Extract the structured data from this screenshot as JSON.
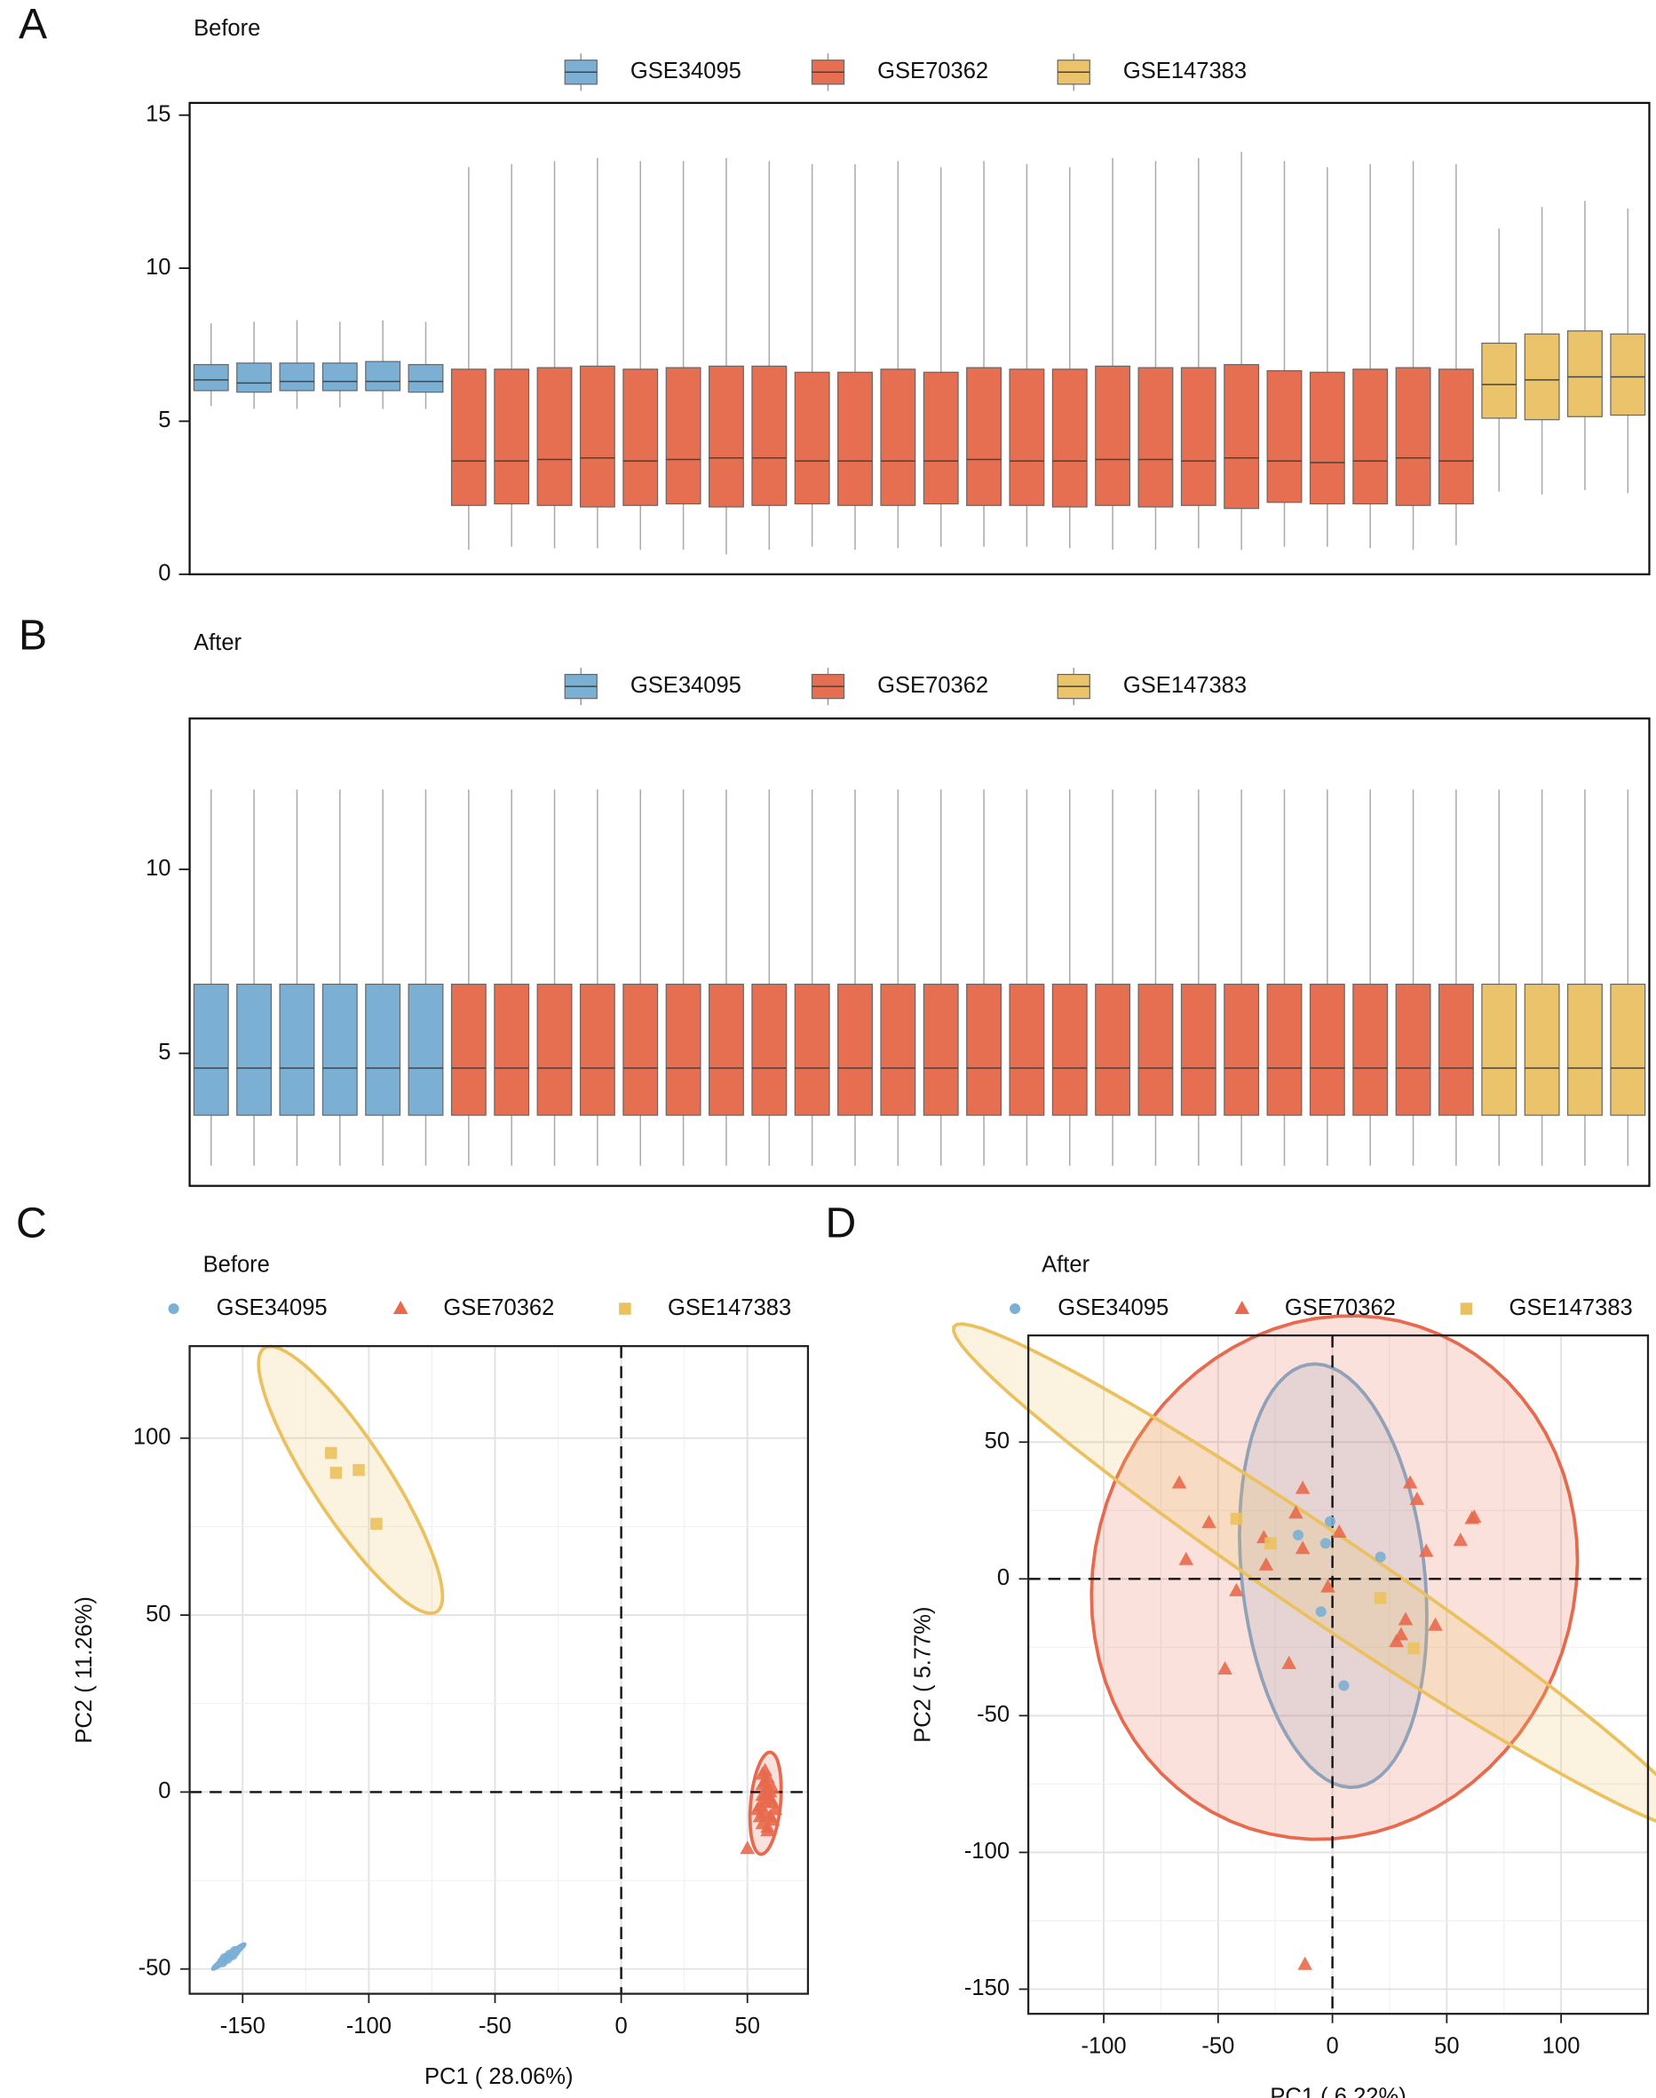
{
  "chart_data": [
    {
      "type": "box",
      "panel": "A",
      "title": "Before",
      "ylim": [
        0,
        15.4
      ],
      "yticks": [
        0,
        5,
        10,
        15
      ],
      "series": [
        {
          "name": "GSE34095",
          "color": "#7BAFD4",
          "boxes": [
            [
              5.5,
              6.0,
              6.35,
              6.85,
              8.2
            ],
            [
              5.4,
              5.95,
              6.25,
              6.9,
              8.25
            ],
            [
              5.4,
              6.0,
              6.3,
              6.9,
              8.3
            ],
            [
              5.45,
              6.0,
              6.3,
              6.9,
              8.25
            ],
            [
              5.4,
              6.0,
              6.3,
              6.95,
              8.3
            ],
            [
              5.4,
              5.95,
              6.3,
              6.85,
              8.25
            ]
          ]
        },
        {
          "name": "GSE70362",
          "color": "#E66F51",
          "boxes": [
            [
              0.8,
              2.25,
              3.7,
              6.7,
              13.3
            ],
            [
              0.9,
              2.3,
              3.7,
              6.7,
              13.4
            ],
            [
              0.85,
              2.25,
              3.75,
              6.75,
              13.5
            ],
            [
              0.85,
              2.2,
              3.8,
              6.8,
              13.6
            ],
            [
              0.8,
              2.25,
              3.7,
              6.7,
              13.5
            ],
            [
              0.8,
              2.3,
              3.75,
              6.75,
              13.5
            ],
            [
              0.65,
              2.2,
              3.8,
              6.8,
              13.6
            ],
            [
              0.8,
              2.25,
              3.8,
              6.8,
              13.5
            ],
            [
              0.9,
              2.3,
              3.7,
              6.6,
              13.4
            ],
            [
              0.8,
              2.25,
              3.7,
              6.6,
              13.4
            ],
            [
              0.85,
              2.25,
              3.7,
              6.7,
              13.5
            ],
            [
              0.9,
              2.3,
              3.7,
              6.6,
              13.3
            ],
            [
              0.9,
              2.25,
              3.75,
              6.75,
              13.5
            ],
            [
              0.9,
              2.25,
              3.7,
              6.7,
              13.4
            ],
            [
              0.85,
              2.2,
              3.7,
              6.7,
              13.3
            ],
            [
              0.8,
              2.25,
              3.75,
              6.8,
              13.6
            ],
            [
              0.8,
              2.2,
              3.75,
              6.75,
              13.5
            ],
            [
              0.85,
              2.25,
              3.7,
              6.75,
              13.6
            ],
            [
              0.8,
              2.15,
              3.8,
              6.85,
              13.8
            ],
            [
              0.9,
              2.35,
              3.7,
              6.65,
              13.5
            ],
            [
              0.9,
              2.3,
              3.65,
              6.6,
              13.3
            ],
            [
              0.85,
              2.3,
              3.7,
              6.7,
              13.4
            ],
            [
              0.8,
              2.25,
              3.8,
              6.75,
              13.5
            ],
            [
              0.95,
              2.3,
              3.7,
              6.7,
              13.4
            ]
          ]
        },
        {
          "name": "GSE147383",
          "color": "#EBC36A",
          "boxes": [
            [
              2.7,
              5.1,
              6.2,
              7.55,
              11.3
            ],
            [
              2.6,
              5.05,
              6.35,
              7.85,
              12.0
            ],
            [
              2.75,
              5.15,
              6.45,
              7.95,
              12.2
            ],
            [
              2.65,
              5.2,
              6.45,
              7.85,
              11.95
            ]
          ]
        }
      ]
    },
    {
      "type": "box",
      "panel": "B",
      "title": "After",
      "ylim": [
        1.4,
        14.1
      ],
      "yticks": [
        5,
        10
      ],
      "series": [
        {
          "name": "GSE34095",
          "color": "#7BAFD4",
          "boxes": [
            [
              1.95,
              3.32,
              4.6,
              6.88,
              12.17
            ],
            [
              1.95,
              3.32,
              4.6,
              6.88,
              12.17
            ],
            [
              1.95,
              3.32,
              4.6,
              6.88,
              12.17
            ],
            [
              1.95,
              3.32,
              4.6,
              6.88,
              12.17
            ],
            [
              1.95,
              3.32,
              4.6,
              6.88,
              12.17
            ],
            [
              1.95,
              3.32,
              4.6,
              6.88,
              12.17
            ]
          ]
        },
        {
          "name": "GSE70362",
          "color": "#E66F51",
          "boxes": [
            [
              1.95,
              3.32,
              4.6,
              6.88,
              12.17
            ],
            [
              1.95,
              3.32,
              4.6,
              6.88,
              12.17
            ],
            [
              1.95,
              3.32,
              4.6,
              6.88,
              12.17
            ],
            [
              1.95,
              3.32,
              4.6,
              6.88,
              12.17
            ],
            [
              1.95,
              3.32,
              4.6,
              6.88,
              12.17
            ],
            [
              1.95,
              3.32,
              4.6,
              6.88,
              12.17
            ],
            [
              1.95,
              3.32,
              4.6,
              6.88,
              12.17
            ],
            [
              1.95,
              3.32,
              4.6,
              6.88,
              12.17
            ],
            [
              1.95,
              3.32,
              4.6,
              6.88,
              12.17
            ],
            [
              1.95,
              3.32,
              4.6,
              6.88,
              12.17
            ],
            [
              1.95,
              3.32,
              4.6,
              6.88,
              12.17
            ],
            [
              1.95,
              3.32,
              4.6,
              6.88,
              12.17
            ],
            [
              1.95,
              3.32,
              4.6,
              6.88,
              12.17
            ],
            [
              1.95,
              3.32,
              4.6,
              6.88,
              12.17
            ],
            [
              1.95,
              3.32,
              4.6,
              6.88,
              12.17
            ],
            [
              1.95,
              3.32,
              4.6,
              6.88,
              12.17
            ],
            [
              1.95,
              3.32,
              4.6,
              6.88,
              12.17
            ],
            [
              1.95,
              3.32,
              4.6,
              6.88,
              12.17
            ],
            [
              1.95,
              3.32,
              4.6,
              6.88,
              12.17
            ],
            [
              1.95,
              3.32,
              4.6,
              6.88,
              12.17
            ],
            [
              1.95,
              3.32,
              4.6,
              6.88,
              12.17
            ],
            [
              1.95,
              3.32,
              4.6,
              6.88,
              12.17
            ],
            [
              1.95,
              3.32,
              4.6,
              6.88,
              12.17
            ],
            [
              1.95,
              3.32,
              4.6,
              6.88,
              12.17
            ]
          ]
        },
        {
          "name": "GSE147383",
          "color": "#EBC36A",
          "boxes": [
            [
              1.95,
              3.32,
              4.6,
              6.88,
              12.17
            ],
            [
              1.95,
              3.32,
              4.6,
              6.88,
              12.17
            ],
            [
              1.95,
              3.32,
              4.6,
              6.88,
              12.17
            ],
            [
              1.95,
              3.32,
              4.6,
              6.88,
              12.17
            ]
          ]
        }
      ]
    },
    {
      "type": "scatter",
      "panel": "C",
      "title": "Before",
      "xlabel": "PC1 ( 28.06%)",
      "ylabel": "PC2 ( 11.26%)",
      "xlim": [
        -171,
        74
      ],
      "ylim": [
        -57,
        126
      ],
      "xticks": [
        -150,
        -100,
        -50,
        0,
        50
      ],
      "yticks": [
        -50,
        0,
        50,
        100
      ],
      "grid": true,
      "hline": 0,
      "vline": 0,
      "series": [
        {
          "name": "GSE34095",
          "color": "#7BAFD4",
          "shape": "circle",
          "x": [
            -158,
            -156,
            -155,
            -153,
            -157,
            -154
          ],
          "y": [
            -48,
            -47,
            -46,
            -45,
            -47,
            -46
          ]
        },
        {
          "name": "GSE70362",
          "color": "#E8694D",
          "shape": "triangle",
          "x": [
            56,
            57,
            58,
            59,
            55,
            57,
            60,
            58,
            56,
            59,
            57,
            61,
            55,
            58,
            60,
            56,
            57,
            59,
            58,
            57,
            60,
            56,
            54,
            50
          ],
          "y": [
            5,
            3,
            1,
            -2,
            -4,
            -6,
            -8,
            -10,
            2,
            0,
            -1,
            -5,
            -7,
            4,
            -3,
            -9,
            6,
            -7,
            -11,
            -3,
            1,
            -1,
            -5,
            -16
          ]
        },
        {
          "name": "GSE147383",
          "color": "#EBC15F",
          "shape": "square",
          "x": [
            -115,
            -113,
            -104,
            -97
          ],
          "y": [
            95.8,
            90.2,
            91,
            75.8
          ]
        }
      ]
    },
    {
      "type": "scatter",
      "panel": "D",
      "title": "After",
      "xlabel": "PC1 ( 6.22%)",
      "ylabel": "PC2 ( 5.77%)",
      "xlim": [
        -133,
        138
      ],
      "ylim": [
        -159,
        89
      ],
      "xticks": [
        -100,
        -50,
        0,
        50,
        100
      ],
      "yticks": [
        -150,
        -100,
        -50,
        0,
        50
      ],
      "grid": true,
      "hline": 0,
      "vline": 0,
      "series": [
        {
          "name": "GSE34095",
          "color": "#7BAFD4",
          "shape": "circle",
          "x": [
            -1,
            -3,
            21,
            -5,
            5,
            -15
          ],
          "y": [
            21,
            13,
            8,
            -12,
            -39,
            16
          ]
        },
        {
          "name": "GSE70362",
          "color": "#E8694D",
          "shape": "triangle",
          "x": [
            -67,
            -54,
            -64,
            -42,
            -47,
            -19,
            -29,
            -30,
            -13,
            -16,
            -13,
            3,
            -2,
            34,
            37,
            41,
            56,
            61,
            62,
            32,
            45,
            30,
            28,
            -12
          ],
          "y": [
            35,
            20.5,
            7,
            -4.4,
            -33,
            -31,
            5,
            15,
            33,
            24,
            11,
            17,
            -3,
            35,
            29,
            10,
            14,
            22,
            22.5,
            -15,
            -17,
            -20.5,
            -23,
            -141
          ]
        },
        {
          "name": "GSE147383",
          "color": "#EBC15F",
          "shape": "square",
          "x": [
            -42,
            -27,
            21,
            35.5
          ],
          "y": [
            22,
            13,
            -7,
            -25.4
          ]
        }
      ]
    }
  ]
}
